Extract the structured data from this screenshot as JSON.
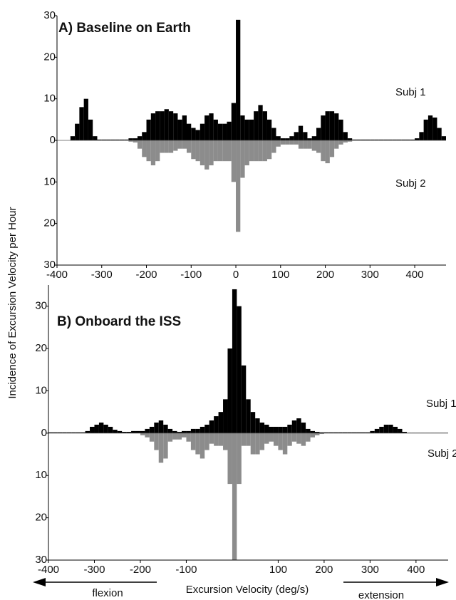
{
  "y_axis_label": "Incidence of Excursion Velocity per Hour",
  "x_axis_label": "Excursion Velocity (deg/s)",
  "left_arrow_label": "flexion",
  "right_arrow_label": "extension",
  "chart_data": [
    {
      "type": "histogram",
      "title": "A) Baseline on Earth",
      "bins": [
        -400,
        -390,
        -380,
        -370,
        -360,
        -350,
        -340,
        -330,
        -320,
        -310,
        -300,
        -290,
        -280,
        -270,
        -260,
        -250,
        -240,
        -230,
        -220,
        -210,
        -200,
        -190,
        -180,
        -170,
        -160,
        -150,
        -140,
        -130,
        -120,
        -110,
        -100,
        -90,
        -80,
        -70,
        -60,
        -50,
        -40,
        -30,
        -20,
        -10,
        0,
        10,
        20,
        30,
        40,
        50,
        60,
        70,
        80,
        90,
        100,
        110,
        120,
        130,
        140,
        150,
        160,
        170,
        180,
        190,
        200,
        210,
        220,
        230,
        240,
        250,
        260,
        270,
        280,
        290,
        300,
        310,
        320,
        330,
        340,
        350,
        360,
        370,
        380,
        390,
        400,
        410,
        420,
        430,
        440,
        450,
        460,
        470
      ],
      "series": [
        {
          "name": "Subj 1",
          "color": "#000000",
          "values": [
            0,
            0,
            0,
            1,
            4,
            8,
            10,
            5,
            1,
            0.2,
            0.2,
            0.2,
            0.2,
            0.2,
            0.2,
            0.2,
            0.5,
            0.5,
            1,
            2,
            5,
            6.5,
            7,
            7,
            7.5,
            7,
            6.5,
            5,
            6,
            4,
            3,
            2.5,
            4,
            6,
            6.5,
            5,
            4,
            4,
            4.5,
            9,
            29,
            6,
            5,
            5,
            7,
            8.5,
            7,
            5,
            3,
            1,
            0.5,
            0.5,
            1,
            2,
            3.5,
            2,
            0.5,
            1,
            3,
            6,
            7,
            7,
            6.5,
            5,
            2,
            0.5,
            0.2,
            0.2,
            0.2,
            0.2,
            0.2,
            0.2,
            0.2,
            0.2,
            0.2,
            0.2,
            0.2,
            0.2,
            0.2,
            0.2,
            0.5,
            2,
            5,
            6,
            5.5,
            3,
            1
          ]
        },
        {
          "name": "Subj 2",
          "color": "#8c8c8c",
          "values": [
            0,
            0,
            0,
            0,
            0,
            0,
            0,
            0,
            0,
            0,
            0,
            0,
            0,
            0,
            0,
            0,
            -0.3,
            -0.5,
            -2,
            -4,
            -5,
            -6,
            -5,
            -3,
            -3,
            -3,
            -2.5,
            -2,
            -2,
            -3,
            -4.5,
            -5,
            -6,
            -7,
            -6,
            -5,
            -5,
            -5,
            -5,
            -10,
            -22,
            -9,
            -6,
            -5,
            -5,
            -5,
            -5,
            -4.5,
            -3,
            -1.5,
            -1,
            -1,
            -1,
            -1,
            -2,
            -2,
            -2,
            -2.5,
            -3,
            -5,
            -5.5,
            -4,
            -2,
            -1,
            -0.5,
            -0.3,
            0,
            0,
            0,
            0,
            0,
            0,
            0,
            0,
            0,
            0,
            0,
            0,
            0,
            0,
            0,
            0,
            0,
            0,
            0,
            0,
            0
          ]
        }
      ],
      "xlim": [
        -400,
        470
      ],
      "xticks": [
        -400,
        -300,
        -200,
        -100,
        0,
        100,
        200,
        300,
        400
      ],
      "ylim": [
        -30,
        30
      ],
      "yticks": [
        30,
        20,
        10,
        0,
        {
          "value": -10,
          "label": "10"
        },
        {
          "value": -20,
          "label": "20"
        },
        {
          "value": -30,
          "label": "30"
        }
      ]
    },
    {
      "type": "histogram",
      "title": "B) Onboard the ISS",
      "bins": [
        -400,
        -390,
        -380,
        -370,
        -360,
        -350,
        -340,
        -330,
        -320,
        -310,
        -300,
        -290,
        -280,
        -270,
        -260,
        -250,
        -240,
        -230,
        -220,
        -210,
        -200,
        -190,
        -180,
        -170,
        -160,
        -150,
        -140,
        -130,
        -120,
        -110,
        -100,
        -90,
        -80,
        -70,
        -60,
        -50,
        -40,
        -30,
        -20,
        -10,
        0,
        10,
        20,
        30,
        40,
        50,
        60,
        70,
        80,
        90,
        100,
        110,
        120,
        130,
        140,
        150,
        160,
        170,
        180,
        190,
        200,
        210,
        220,
        230,
        240,
        250,
        260,
        270,
        280,
        290,
        300,
        310,
        320,
        330,
        340,
        350,
        360,
        370,
        380,
        390,
        400,
        410,
        420,
        430,
        440,
        450,
        460,
        470
      ],
      "series": [
        {
          "name": "Subj 1",
          "color": "#000000",
          "values": [
            0.2,
            0.2,
            0.2,
            0.2,
            0.2,
            0.2,
            0.2,
            0.2,
            0.5,
            1.5,
            2,
            2.5,
            2,
            1.5,
            0.8,
            0.5,
            0.3,
            0.3,
            0.5,
            0.5,
            0.5,
            1,
            1.5,
            2.5,
            3,
            2,
            1,
            0.5,
            0.3,
            0.5,
            0.5,
            1,
            1,
            1.5,
            2,
            3,
            4,
            5,
            8,
            20,
            34,
            30,
            16,
            8,
            5,
            3.5,
            2.5,
            2,
            1.5,
            1.5,
            1.5,
            1.5,
            2,
            3,
            3.5,
            2.5,
            1,
            0.5,
            0.3,
            0.2,
            0.2,
            0.2,
            0.2,
            0.2,
            0.2,
            0.2,
            0.2,
            0.2,
            0.2,
            0.2,
            0.5,
            1,
            1.5,
            2,
            2,
            1.5,
            1,
            0.3,
            0.1,
            0.1,
            0.1,
            0.1,
            0.1,
            0.1,
            0.1,
            0.1,
            0.1
          ]
        },
        {
          "name": "Subj 2",
          "color": "#8c8c8c",
          "values": [
            0,
            0,
            0,
            0,
            0,
            0,
            0,
            0,
            0,
            0,
            0,
            0,
            0,
            0,
            0,
            0,
            0,
            0,
            0,
            0,
            -0.5,
            -1,
            -2,
            -4,
            -7,
            -6,
            -2,
            -1.5,
            -1.5,
            -1,
            -2,
            -4,
            -5,
            -6,
            -4,
            -2.5,
            -3,
            -3,
            -4,
            -12,
            -30,
            -12,
            -3,
            -3,
            -5,
            -5,
            -4,
            -2.5,
            -2,
            -3,
            -4,
            -5,
            -3,
            -2,
            -2.5,
            -3,
            -2,
            -1,
            -0.5,
            -0.2,
            0,
            0,
            0,
            0,
            0,
            0,
            0,
            0,
            0,
            0,
            0,
            0,
            0,
            0,
            0,
            0,
            0,
            0,
            0,
            0,
            0,
            0,
            0,
            0,
            0,
            0,
            0
          ]
        }
      ],
      "xlim": [
        -400,
        470
      ],
      "xticks": [
        -400,
        -300,
        -200,
        -100,
        100,
        200,
        300,
        400
      ],
      "ylim": [
        -30,
        35
      ],
      "yticks": [
        30,
        20,
        10,
        0,
        {
          "value": -10,
          "label": "10"
        },
        {
          "value": -20,
          "label": "20"
        },
        {
          "value": -30,
          "label": "30"
        }
      ]
    }
  ]
}
